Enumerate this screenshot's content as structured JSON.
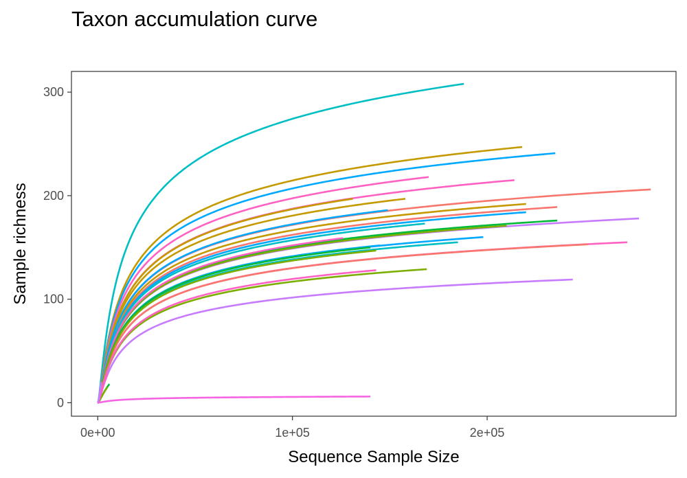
{
  "chart_data": {
    "type": "line",
    "title": "Taxon accumulation curve",
    "xlabel": "Sequence Sample Size",
    "ylabel": "Sample richness",
    "xlim": [
      -13500,
      297000
    ],
    "ylim": [
      -13,
      320
    ],
    "x_ticks": [
      {
        "value": 0,
        "label": "0e+00"
      },
      {
        "value": 100000,
        "label": "1e+05"
      },
      {
        "value": 200000,
        "label": "2e+05"
      }
    ],
    "y_ticks": [
      {
        "value": 0,
        "label": "0"
      },
      {
        "value": 100,
        "label": "100"
      },
      {
        "value": 200,
        "label": "200"
      },
      {
        "value": 300,
        "label": "300"
      }
    ],
    "grid": false,
    "legend": "none",
    "series": [
      {
        "color": "#00BFC4",
        "max_x": 188000,
        "max_y": 308
      },
      {
        "color": "#C49A00",
        "max_x": 218000,
        "max_y": 247
      },
      {
        "color": "#00A9FF",
        "max_x": 235000,
        "max_y": 241
      },
      {
        "color": "#FF61C3",
        "max_x": 170000,
        "max_y": 218
      },
      {
        "color": "#FF61C3",
        "max_x": 214000,
        "max_y": 215
      },
      {
        "color": "#F8766D",
        "max_x": 284000,
        "max_y": 206
      },
      {
        "color": "#C49A00",
        "max_x": 131000,
        "max_y": 197
      },
      {
        "color": "#C49A00",
        "max_x": 158000,
        "max_y": 197
      },
      {
        "color": "#C49A00",
        "max_x": 220000,
        "max_y": 192
      },
      {
        "color": "#F8766D",
        "max_x": 236000,
        "max_y": 189
      },
      {
        "color": "#00A9FF",
        "max_x": 149000,
        "max_y": 186
      },
      {
        "color": "#00A9FF",
        "max_x": 220000,
        "max_y": 184
      },
      {
        "color": "#C77CFF",
        "max_x": 278000,
        "max_y": 178
      },
      {
        "color": "#00BA38",
        "max_x": 236000,
        "max_y": 176
      },
      {
        "color": "#00BFC4",
        "max_x": 168000,
        "max_y": 173
      },
      {
        "color": "#7CAE00",
        "max_x": 210000,
        "max_y": 171
      },
      {
        "color": "#00A9FF",
        "max_x": 198000,
        "max_y": 160
      },
      {
        "color": "#FF61C3",
        "max_x": 126000,
        "max_y": 159
      },
      {
        "color": "#00BFC4",
        "max_x": 185000,
        "max_y": 155
      },
      {
        "color": "#FF61C3",
        "max_x": 272000,
        "max_y": 155
      },
      {
        "color": "#F8766D",
        "max_x": 252000,
        "max_y": 153
      },
      {
        "color": "#00A9FF",
        "max_x": 145000,
        "max_y": 152
      },
      {
        "color": "#00BA38",
        "max_x": 140000,
        "max_y": 150
      },
      {
        "color": "#7CAE00",
        "max_x": 143000,
        "max_y": 147
      },
      {
        "color": "#7CAE00",
        "max_x": 169000,
        "max_y": 129
      },
      {
        "color": "#FF61C3",
        "max_x": 143000,
        "max_y": 128
      },
      {
        "color": "#C77CFF",
        "max_x": 244000,
        "max_y": 119
      },
      {
        "color": "#00BA38",
        "max_x": 6000,
        "max_y": 18
      },
      {
        "color": "#7CAE00",
        "max_x": 5000,
        "max_y": 15
      },
      {
        "color": "#FF61C3",
        "max_x": 5000,
        "max_y": 28
      },
      {
        "color": "#C77CFF",
        "max_x": 1800,
        "max_y": 20
      },
      {
        "color": "#F564E3",
        "max_x": 140000,
        "max_y": 6
      }
    ]
  }
}
